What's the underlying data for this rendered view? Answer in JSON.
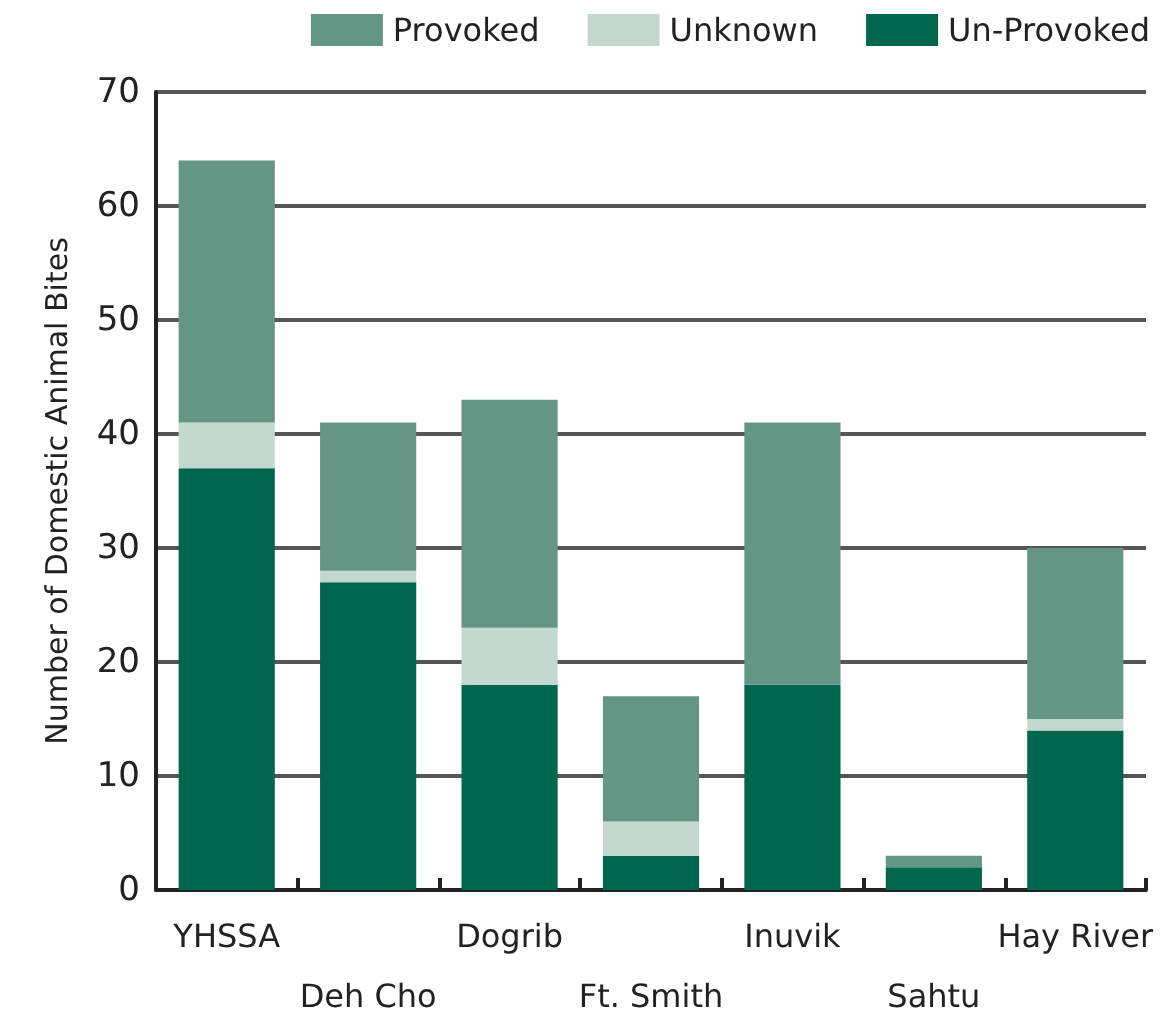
{
  "chart_data": {
    "type": "bar",
    "ylabel": "Number of Domestic Animal Bites",
    "categories": [
      "YHSSA",
      "Deh Cho",
      "Dogrib",
      "Ft. Smith",
      "Inuvik",
      "Sahtu",
      "Hay River"
    ],
    "series": [
      {
        "name": "Un-Provoked",
        "color": "#00674f",
        "values": [
          37,
          27,
          18,
          3,
          18,
          2,
          14
        ]
      },
      {
        "name": "Unknown",
        "color": "#c3d8cf",
        "values": [
          4,
          1,
          5,
          3,
          0,
          0,
          1
        ]
      },
      {
        "name": "Provoked",
        "color": "#639684",
        "values": [
          23,
          13,
          20,
          11,
          23,
          1,
          15
        ]
      }
    ],
    "stacked": true,
    "ylim": [
      0,
      70
    ],
    "yticks": [
      0,
      10,
      20,
      30,
      40,
      50,
      60,
      70
    ],
    "grid": "y",
    "legend": "top"
  }
}
